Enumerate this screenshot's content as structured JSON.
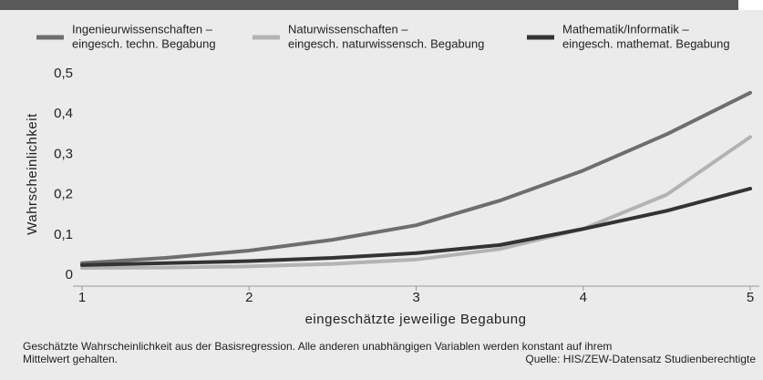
{
  "chart_data": {
    "type": "line",
    "x": [
      1,
      1.5,
      2,
      2.5,
      3,
      3.5,
      4,
      4.5,
      5
    ],
    "series": [
      {
        "name": [
          "Ingenieurwissenschaften –",
          "eingesch. techn. Begabung"
        ],
        "color": "#6e6e6e",
        "values": [
          0.03,
          0.043,
          0.061,
          0.088,
          0.124,
          0.185,
          0.26,
          0.35,
          0.453
        ]
      },
      {
        "name": [
          "Naturwissenschaften –",
          "eingesch. naturwissensch. Begabung"
        ],
        "color": "#b3b3b3",
        "values": [
          0.018,
          0.019,
          0.022,
          0.028,
          0.039,
          0.065,
          0.115,
          0.2,
          0.343
        ]
      },
      {
        "name": [
          "Mathematik/Informatik –",
          "eingesch. mathemat. Begabung"
        ],
        "color": "#333333",
        "values": [
          0.025,
          0.03,
          0.035,
          0.043,
          0.055,
          0.075,
          0.115,
          0.16,
          0.215
        ]
      }
    ],
    "xlim": [
      1,
      5
    ],
    "xticks": [
      1,
      2,
      3,
      4,
      5
    ],
    "ylim": [
      0,
      0.5
    ],
    "yticks": [
      0,
      {
        "value": 0.1,
        "label": "0,1"
      },
      {
        "value": 0.2,
        "label": "0,2"
      },
      {
        "value": 0.3,
        "label": "0,3"
      },
      {
        "value": 0.4,
        "label": "0,4"
      },
      {
        "value": 0.5,
        "label": "0,5"
      }
    ],
    "xlabel": "eingeschätzte jeweilige Begabung",
    "ylabel": "Wahrscheinlichkeit",
    "note": [
      "Geschätzte Wahrscheinlichkeit aus der Basisregression. Alle anderen unabhängigen Variablen werden konstant auf ihrem",
      "Mittelwert gehalten."
    ],
    "source": "Quelle: HIS/ZEW-Datensatz Studienberechtigte"
  }
}
